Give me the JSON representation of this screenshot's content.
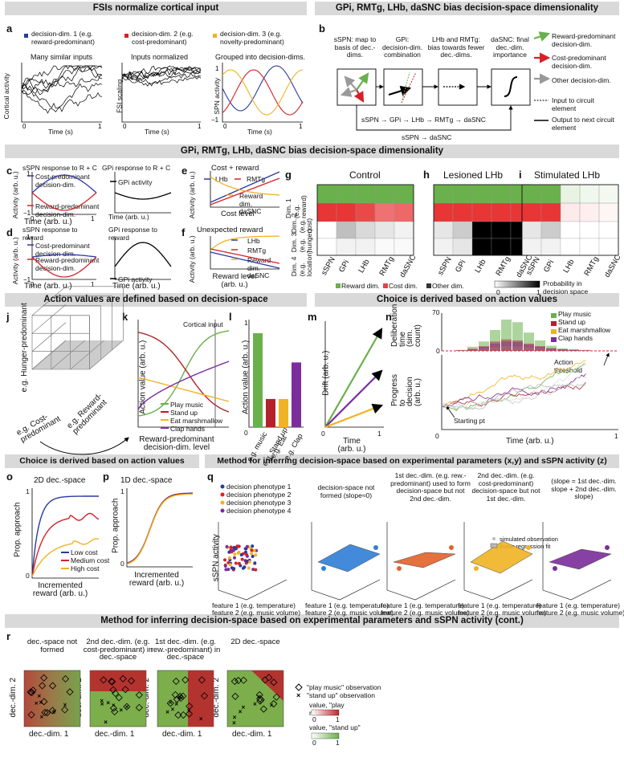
{
  "section_titles": {
    "fsi": "FSIs normalize cortical input",
    "gpi_top": "GPi, RMTg, LHb, daSNC bias decision-space dimensionality",
    "gpi_mid": "GPi, RMTg, LHb, daSNC bias decision-space dimensionality",
    "action_values": "Action values are defined based on decision-space",
    "choice_top": "Choice is derived based on action values",
    "choice_bottom": "Choice is derived based on action values",
    "method": "Method for inferring decision-space based on experimental parameters (x,y) and sSPN activity (z)",
    "method_cont": "Method for inferring decision-space based on experimental parameters and sSPN activity (cont.)"
  },
  "panel_letters": [
    "a",
    "b",
    "c",
    "d",
    "e",
    "f",
    "g",
    "h",
    "i",
    "j",
    "k",
    "l",
    "m",
    "n",
    "o",
    "p",
    "q",
    "r"
  ],
  "colors": {
    "blue": "#2b3a9e",
    "red": "#d6202a",
    "yellow": "#f0b323",
    "green": "#6ab04c",
    "purple": "#7b2d9b",
    "grey": "#999999",
    "banner": "#d9d9d9"
  },
  "panel_a": {
    "legend": [
      "decision-dim. 1 (e.g. reward-predominant)",
      "decision-dim. 2 (e.g. cost-predominant)",
      "decision-dim. 3 (e.g. novelty-predominant)"
    ],
    "titles": [
      "Many similar inputs",
      "Inputs normalized",
      "Grouped into decision-dims."
    ],
    "ylabels": [
      "Cortical activity",
      "FSI scaling",
      "SPN activity"
    ],
    "xlabel": "Time (s)"
  },
  "panel_b": {
    "boxes": [
      "sSPN: map to basis of dec.-dims.",
      "GPi: decision-dim. combination",
      "LHb and RMTg: bias towards fewer dec.-dims.",
      "daSNC: final dec.-dim. importance"
    ],
    "flow1": "sSPN → GPi → LHb → RMTg → daSNC",
    "flow2": "sSPN → daSNC",
    "legend": [
      "Reward-predominant decision-dim.",
      "Cost-predominant decision-dim.",
      "Other decision-dim.",
      "Input to circuit element",
      "Output to next circuit element"
    ]
  },
  "panel_c": {
    "title1": "sSPN response to R + C",
    "title2": "GPi response to R + C",
    "legend1": [
      "Cost-predominant decision-dim.",
      "Reward-predominant decision-dim."
    ],
    "legend2": "GPi activity",
    "ylabel": "Activity (arb. u.)",
    "xlabel": "Time (arb. u.)"
  },
  "panel_d": {
    "title1": "sSPN response to reward",
    "title2": "GPi response to reward",
    "legend1": [
      "Cost-predominant decision-dim.",
      "Reward-predominant decision-dim."
    ],
    "legend2": "GPi activity",
    "ylabel": "Activity (arb. u.)",
    "xlabel": "Time (arb. u.)"
  },
  "panel_e": {
    "title": "Cost + reward",
    "legend": [
      "LHb",
      "RMTg",
      "Reward dim. daSNC"
    ],
    "xlabel": "Cost level",
    "ylabel": "Activity (arb. u.)"
  },
  "panel_f": {
    "title": "Unexpected reward",
    "legend": [
      "LHb",
      "RMTg",
      "Reward dim. daSNC"
    ],
    "xlabel": "Reward level (arb. u.)",
    "ylabel": "Activity (arb. u.)"
  },
  "heatmaps": {
    "titles": [
      "Control",
      "Lesioned LHb",
      "Stimulated LHb"
    ],
    "rows": [
      "Dim. 1 (e.g. reward)",
      "Dim. 2 (e.g. cost)",
      "Dim. 3 (e.g. hunger)",
      "Dim. 4 (e.g. location)"
    ],
    "cols": [
      "sSPN",
      "GPi",
      "LHb",
      "RMTg",
      "daSNC"
    ],
    "legend": [
      "Reward dim.",
      "Cost dim.",
      "Other dim.",
      "Probability in decision space"
    ],
    "scale": [
      "0",
      "1"
    ]
  },
  "panel_j": {
    "axes": [
      "e.g. Hunger-predominant",
      "e.g. Cost-predominant",
      "e.g. Reward-predominant"
    ]
  },
  "panel_k": {
    "ylabel": "Action value (arb. u.)",
    "xlabel": "Reward-predominant decision-dim. level",
    "annotation": "Cortical input",
    "legend": [
      "Play music",
      "Stand up",
      "Eat marshmallow",
      "Clap hands"
    ]
  },
  "panel_l": {
    "ylabel": "Action value (arb. u.)",
    "cats": [
      "e.g. music",
      "e.g. Stand up",
      "e.g. Eat",
      "e.g. Clap"
    ],
    "values": [
      0.9,
      0.27,
      0.27,
      0.62
    ],
    "ticks": [
      "0",
      "1"
    ]
  },
  "panel_m": {
    "ylabel": "Drift (arb. u.)",
    "xlabel": "Time (arb. u.)",
    "ticks": [
      "0",
      "1"
    ]
  },
  "panel_n": {
    "ylabel_top": "Deliberation time (sim. count)",
    "ylabel_bottom": "Progress to decision (arb. u.)",
    "xlabel": "Time (arb. u.)",
    "legend": [
      "Play music",
      "Stand up",
      "Eat marshmallow",
      "Clap hands"
    ],
    "threshold": "Action threshold",
    "start": "Starting pt",
    "ticks": [
      "70",
      "0",
      "0",
      "1"
    ]
  },
  "panel_o": {
    "title": "2D dec.-space",
    "ylabel": "Prop. approach",
    "xlabel": "Incremented reward (arb. u.)",
    "legend": [
      "Low cost",
      "Medium cost",
      "High cost"
    ],
    "ticks": [
      "1",
      "0"
    ]
  },
  "panel_p": {
    "title": "1D dec.-space",
    "ylabel": "Prop. approach",
    "xlabel": "Incremented reward (arb. u.)",
    "ticks": [
      "1",
      "0"
    ]
  },
  "panel_q": {
    "legend": [
      "decision phenotype 1",
      "decision phenotype 2",
      "decision phenotype 3",
      "decision phenotype 4"
    ],
    "titles": [
      "decision-space not formed (slope≈0)",
      "1st dec.-dim. (e.g. rew.-predominant) used to form decision-space but not 2nd dec.-dim.",
      "2nd dec.-dim. (e.g. cost-predominant) decision-space but not 1st dec.-dim.",
      "(slope = 1st dec.-dim. slope + 2nd dec.-dim. slope)"
    ],
    "fit_legend": [
      "simulated observation",
      "linear regression fit"
    ],
    "zlabel": "sSPN activity",
    "xlabel1": "feature 1 (e.g. temperature)",
    "xlabel2": "feature 2 (e.g. music volume)",
    "ticks": [
      "5",
      "0",
      "-5",
      "-2",
      "-2",
      "2",
      "4"
    ]
  },
  "panel_r": {
    "titles": [
      "dec.-space not formed",
      "2nd dec.-dim. (e.g. cost-predominant) in dec.-space",
      "1st dec.-dim. (e.g. rew.-predominant) in dec.-space",
      "2D dec.-space"
    ],
    "xlabel": "dec.-dim. 1",
    "ylabel": "dec.-dim. 2",
    "legend": [
      "\"play music\" observation",
      "\"stand up\" observation",
      "value, \"play music\"",
      "value, \"stand up\""
    ],
    "scale": [
      "0",
      "1",
      "0",
      "1"
    ]
  }
}
